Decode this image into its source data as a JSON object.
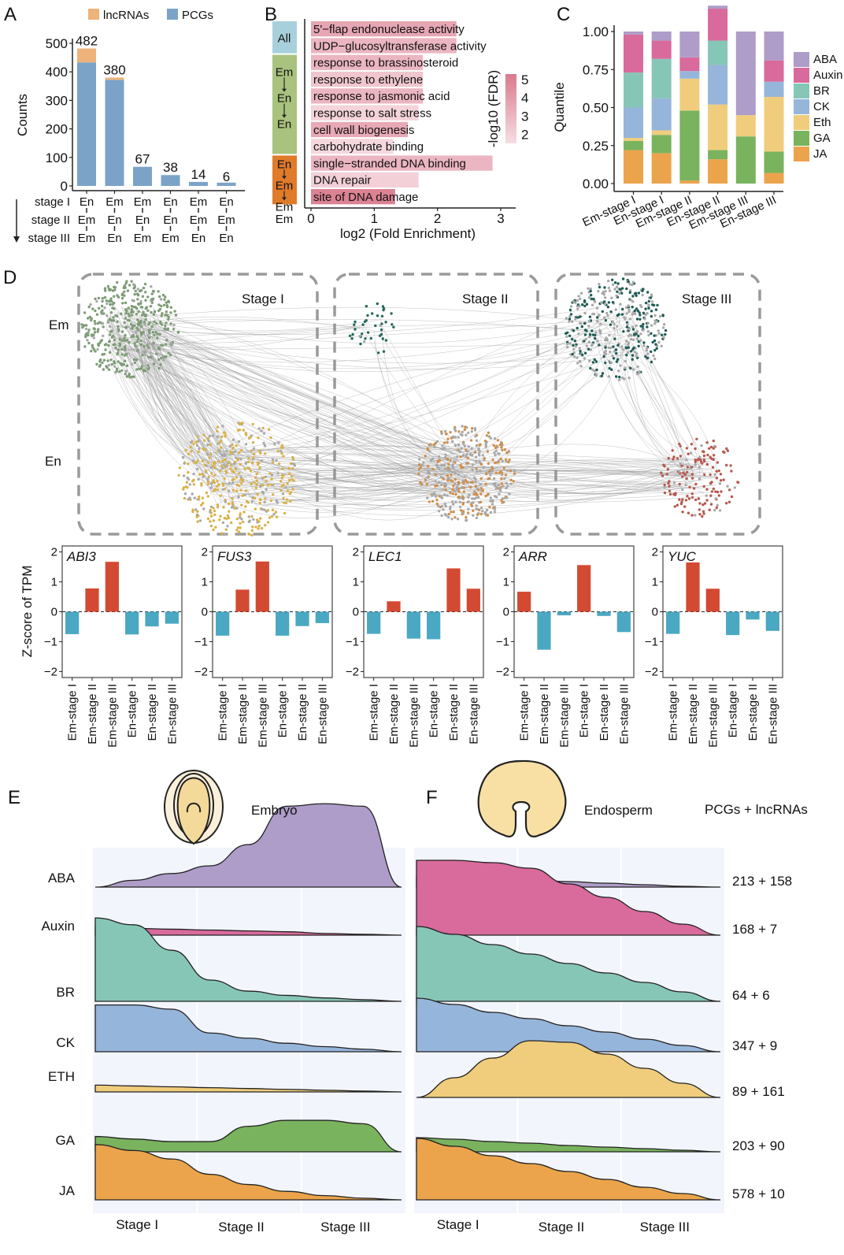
{
  "panel_labels": {
    "a": "A",
    "b": "B",
    "c": "C",
    "d": "D",
    "e": "E",
    "f": "F"
  },
  "chart_data": [
    {
      "id": "A",
      "type": "bar",
      "stacked": true,
      "title": "",
      "ylabel": "Counts",
      "ylim": [
        0,
        500
      ],
      "yticks": [
        0,
        100,
        200,
        300,
        400,
        500
      ],
      "legend": {
        "position": "top",
        "items": [
          {
            "name": "lncRNAs",
            "color": "#EDB37A"
          },
          {
            "name": "PCGs",
            "color": "#7BA3C8"
          }
        ]
      },
      "categories": [
        "En→Em→Em",
        "Em→En→En",
        "Em→En→Em",
        "En→En→Em",
        "Em→Em→En",
        "En→Em→En"
      ],
      "pattern_rows": [
        {
          "label": "stage I",
          "values": [
            "En",
            "Em",
            "Em",
            "En",
            "Em",
            "En"
          ]
        },
        {
          "label": "stage II",
          "values": [
            "Em",
            "En",
            "En",
            "En",
            "Em",
            "Em"
          ]
        },
        {
          "label": "stage III",
          "values": [
            "Em",
            "En",
            "Em",
            "Em",
            "En",
            "En"
          ]
        }
      ],
      "series": [
        {
          "name": "PCGs",
          "values": [
            433,
            372,
            67,
            38,
            14,
            6
          ]
        },
        {
          "name": "lncRNAs",
          "values": [
            49,
            8,
            0,
            0,
            0,
            0
          ]
        }
      ],
      "totals": [
        482,
        380,
        67,
        38,
        14,
        6
      ]
    },
    {
      "id": "B",
      "type": "bar",
      "orientation": "horizontal",
      "xlabel": "log2 (Fold Enrichment)",
      "xlim": [
        0,
        3
      ],
      "xticks": [
        0,
        1,
        2,
        3
      ],
      "colorbar": {
        "label": "-log10 (FDR)",
        "ticks": [
          2,
          3,
          4,
          5
        ],
        "range": [
          1.5,
          5.3
        ],
        "low_color": "#F7DDE3",
        "high_color": "#D97A8C"
      },
      "groups": [
        {
          "label": "All",
          "color": "#A8D0DC",
          "count": 2
        },
        {
          "label": "Em→En→En",
          "parts": [
            "Em",
            "En",
            "En"
          ],
          "color": "#A9C27E",
          "count": 6
        },
        {
          "label": "En→Em→Em",
          "parts": [
            "En",
            "Em",
            "Em"
          ],
          "color": "#E07B2A",
          "count": 3
        }
      ],
      "terms": [
        {
          "name": "5'−flap endonuclease activity",
          "value": 2.3,
          "fdr": 3.6
        },
        {
          "name": "UDP−glucosyltransferase activity",
          "value": 2.3,
          "fdr": 3.0
        },
        {
          "name": "response to brassinosteroid",
          "value": 1.77,
          "fdr": 3.0
        },
        {
          "name": "response to ethylene",
          "value": 1.77,
          "fdr": 2.4
        },
        {
          "name": "response to jasmonic acid",
          "value": 1.77,
          "fdr": 3.0
        },
        {
          "name": "response to salt stress",
          "value": 1.7,
          "fdr": 1.9
        },
        {
          "name": "cell wall biogenesis",
          "value": 1.53,
          "fdr": 3.5
        },
        {
          "name": "carbohydrate binding",
          "value": 1.3,
          "fdr": 1.7
        },
        {
          "name": "single−stranded DNA binding",
          "value": 2.87,
          "fdr": 3.0
        },
        {
          "name": "DNA repair",
          "value": 1.7,
          "fdr": 2.0
        },
        {
          "name": "site of DNA damage",
          "value": 1.33,
          "fdr": 5.0
        }
      ]
    },
    {
      "id": "C",
      "type": "bar",
      "stacked": true,
      "ylabel": "Quantile",
      "ylim": [
        0,
        1
      ],
      "yticks": [
        "0.00",
        "0.25",
        "0.50",
        "0.75",
        "1.00"
      ],
      "categories": [
        "Em-stage I",
        "En-stage I",
        "Em-stage II",
        "En-stage II",
        "Em-stage III",
        "En-stage III"
      ],
      "legend": {
        "position": "right",
        "items": [
          {
            "name": "ABA",
            "color": "#AE9CC9"
          },
          {
            "name": "Auxin",
            "color": "#D86A9C"
          },
          {
            "name": "BR",
            "color": "#86C6B7"
          },
          {
            "name": "CK",
            "color": "#96B5DA"
          },
          {
            "name": "Eth",
            "color": "#F0CD7C"
          },
          {
            "name": "GA",
            "color": "#79B35E"
          },
          {
            "name": "JA",
            "color": "#EBA44C"
          }
        ]
      },
      "series": [
        {
          "name": "JA",
          "values": [
            0.22,
            0.2,
            0.02,
            0.16,
            0.0,
            0.07
          ]
        },
        {
          "name": "GA",
          "values": [
            0.06,
            0.12,
            0.46,
            0.06,
            0.31,
            0.14
          ]
        },
        {
          "name": "Eth",
          "values": [
            0.02,
            0.03,
            0.21,
            0.3,
            0.14,
            0.36
          ]
        },
        {
          "name": "CK",
          "values": [
            0.2,
            0.21,
            0.05,
            0.26,
            0.0,
            0.1
          ]
        },
        {
          "name": "BR",
          "values": [
            0.23,
            0.26,
            0.0,
            0.16,
            0.0,
            0.0
          ]
        },
        {
          "name": "Auxin",
          "values": [
            0.25,
            0.12,
            0.09,
            0.21,
            0.0,
            0.14
          ]
        },
        {
          "name": "ABA",
          "values": [
            0.02,
            0.06,
            0.17,
            0.02,
            0.55,
            0.19
          ]
        }
      ]
    },
    {
      "id": "D-network",
      "type": "network",
      "row_labels": [
        "Em",
        "En"
      ],
      "stage_labels": [
        "Stage I",
        "Stage II",
        "Stage III"
      ],
      "modules": [
        {
          "stage": "Stage I",
          "tissue": "Em",
          "color": "#7E9C76",
          "size": "large"
        },
        {
          "stage": "Stage I",
          "tissue": "En",
          "color": "#D9B24A",
          "size": "large"
        },
        {
          "stage": "Stage II",
          "tissue": "Em",
          "color": "#24685E",
          "size": "small"
        },
        {
          "stage": "Stage II",
          "tissue": "En",
          "color": "#D08F4B",
          "size": "large"
        },
        {
          "stage": "Stage III",
          "tissue": "Em",
          "color": "#1E5D55",
          "size": "large"
        },
        {
          "stage": "Stage III",
          "tissue": "En",
          "color": "#B65A50",
          "size": "medium"
        }
      ],
      "edge_color": "#8F8F8F"
    },
    {
      "id": "D-zscore",
      "type": "bar",
      "ylabel": "Z-score of  TPM",
      "ylim": [
        -2.2,
        2.2
      ],
      "yticks": [
        "−2",
        "−1",
        "0",
        "1",
        "2"
      ],
      "categories": [
        "Em-stage I",
        "Em-stage II",
        "Em-stage III",
        "En-stage I",
        "En-stage II",
        "En-stage III"
      ],
      "pos_color": "#D34A32",
      "neg_color": "#4BA8C2",
      "genes": [
        {
          "name": "ABI3",
          "values": [
            -0.75,
            0.78,
            1.67,
            -0.76,
            -0.49,
            -0.4
          ]
        },
        {
          "name": "FUS3",
          "values": [
            -0.8,
            0.74,
            1.68,
            -0.8,
            -0.48,
            -0.38
          ]
        },
        {
          "name": "LEC1",
          "values": [
            -0.74,
            0.35,
            -0.9,
            -0.92,
            1.45,
            0.77
          ]
        },
        {
          "name": "ARR",
          "values": [
            0.67,
            -1.27,
            -0.12,
            1.56,
            -0.14,
            -0.68
          ]
        },
        {
          "name": "YUC",
          "values": [
            -0.74,
            1.65,
            0.77,
            -0.78,
            -0.26,
            -0.64
          ]
        }
      ]
    },
    {
      "id": "E",
      "type": "area",
      "title": "Embryo",
      "xticks": [
        "Stage I",
        "Stage II",
        "Stage III"
      ],
      "hormones": [
        {
          "name": "ABA",
          "color": "#AE9CC9",
          "values": [
            0.0,
            0.08,
            0.16,
            0.25,
            0.5,
            0.95,
            0.98,
            0.95,
            0.0
          ]
        },
        {
          "name": "Auxin",
          "color": "#D86A9C",
          "values": [
            0.09,
            0.08,
            0.07,
            0.06,
            0.05,
            0.04,
            0.02,
            0.01,
            0.0
          ]
        },
        {
          "name": "BR",
          "color": "#86C6B7",
          "values": [
            0.98,
            0.9,
            0.6,
            0.25,
            0.12,
            0.07,
            0.04,
            0.02,
            0.0
          ]
        },
        {
          "name": "CK",
          "color": "#96B5DA",
          "values": [
            0.55,
            0.55,
            0.5,
            0.22,
            0.16,
            0.1,
            0.06,
            0.03,
            0.0
          ]
        },
        {
          "name": "ETH",
          "color": "#F0CD7C",
          "values": [
            0.08,
            0.07,
            0.06,
            0.05,
            0.04,
            0.03,
            0.02,
            0.01,
            0.0
          ]
        },
        {
          "name": "GA",
          "color": "#79B35E",
          "values": [
            0.18,
            0.15,
            0.12,
            0.12,
            0.3,
            0.37,
            0.37,
            0.33,
            0.0
          ]
        },
        {
          "name": "JA",
          "color": "#EBA44C",
          "values": [
            0.65,
            0.58,
            0.48,
            0.3,
            0.18,
            0.1,
            0.05,
            0.02,
            0.0
          ]
        }
      ]
    },
    {
      "id": "F",
      "type": "area",
      "title": "Endosperm",
      "count_header": "PCGs + lncRNAs",
      "xticks": [
        "Stage I",
        "Stage II",
        "Stage III"
      ],
      "hormones": [
        {
          "name": "ABA",
          "color": "#AE9CC9",
          "counts": "213 + 158",
          "values": [
            0.13,
            0.12,
            0.1,
            0.09,
            0.07,
            0.05,
            0.03,
            0.01,
            0.0
          ]
        },
        {
          "name": "Auxin",
          "color": "#D86A9C",
          "counts": "168 + 7",
          "values": [
            0.95,
            0.95,
            0.92,
            0.85,
            0.65,
            0.48,
            0.3,
            0.14,
            0.0
          ]
        },
        {
          "name": "BR",
          "color": "#86C6B7",
          "counts": "64 + 6",
          "values": [
            0.95,
            0.85,
            0.72,
            0.6,
            0.48,
            0.36,
            0.24,
            0.12,
            0.0
          ]
        },
        {
          "name": "CK",
          "color": "#96B5DA",
          "counts": "347 + 9",
          "values": [
            0.68,
            0.6,
            0.5,
            0.42,
            0.33,
            0.25,
            0.16,
            0.08,
            0.0
          ]
        },
        {
          "name": "ETH",
          "color": "#F0CD7C",
          "counts": "89 + 161",
          "values": [
            0.0,
            0.25,
            0.5,
            0.72,
            0.7,
            0.55,
            0.37,
            0.18,
            0.0
          ]
        },
        {
          "name": "GA",
          "color": "#79B35E",
          "counts": "203 + 90",
          "values": [
            0.18,
            0.16,
            0.13,
            0.11,
            0.08,
            0.06,
            0.04,
            0.02,
            0.0
          ]
        },
        {
          "name": "JA",
          "color": "#EBA44C",
          "counts": "578 + 10",
          "values": [
            0.78,
            0.68,
            0.56,
            0.46,
            0.36,
            0.26,
            0.16,
            0.08,
            0.0
          ]
        }
      ]
    }
  ]
}
